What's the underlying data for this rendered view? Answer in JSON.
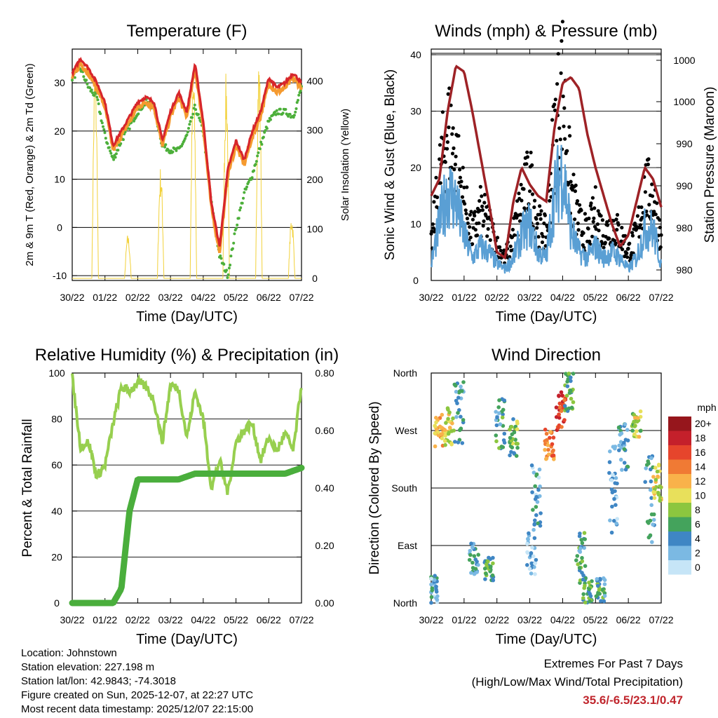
{
  "colors": {
    "temp_red": "#d7262b",
    "temp_orange": "#f59a2f",
    "dewpoint_green": "#4caf3a",
    "solar_yellow": "#f2d13a",
    "gust_black": "#000000",
    "wind_blue": "#5a9fd4",
    "pressure_maroon": "#9e2226",
    "rh_lightgreen": "#97cf4f",
    "precip_green": "#4aae3c",
    "extremes_red": "#c0262d"
  },
  "x_ticks": [
    "30/22",
    "01/22",
    "02/22",
    "03/22",
    "04/22",
    "05/22",
    "06/22",
    "07/22"
  ],
  "chart_data": [
    {
      "id": "temperature",
      "type": "line",
      "title": "Temperature (F)",
      "xlabel": "Time (Day/UTC)",
      "ylabel": "2m & 9m T (Red, Orange) & 2m Td (Green)",
      "y2label": "Solar Insolation (Yellow)",
      "ylim": [
        -11,
        37
      ],
      "y2lim": [
        0,
        460
      ],
      "yticks": [
        -10,
        0,
        10,
        20,
        30
      ],
      "y2ticks": [
        0,
        100,
        200,
        300,
        400
      ],
      "x": [
        0,
        0.25,
        0.5,
        0.75,
        1.0,
        1.25,
        1.5,
        1.75,
        2.0,
        2.25,
        2.5,
        2.75,
        3.0,
        3.25,
        3.5,
        3.75,
        4.0,
        4.25,
        4.5,
        4.75,
        5.0,
        5.25,
        5.5,
        5.75,
        6.0,
        6.25,
        6.5,
        6.75,
        7.0
      ],
      "series": [
        {
          "name": "2m T",
          "values": [
            32,
            35,
            33,
            30,
            26,
            17,
            20,
            23,
            26,
            27,
            26,
            18,
            24,
            28,
            24,
            34,
            22,
            5,
            -4,
            12,
            18,
            14,
            20,
            24,
            31,
            29,
            30,
            32,
            30
          ]
        },
        {
          "name": "9m T",
          "values": [
            31,
            34,
            32,
            29,
            25,
            16,
            19,
            22,
            25,
            26,
            25,
            17,
            23,
            27,
            23,
            33,
            21,
            4,
            -5,
            11,
            17,
            13,
            19,
            23,
            30,
            28,
            29,
            31,
            29
          ]
        },
        {
          "name": "2m Td",
          "values": [
            31,
            33,
            29,
            27,
            19,
            14,
            18,
            21,
            24,
            26,
            25,
            17,
            16,
            16,
            19,
            25,
            20,
            5,
            -6,
            -10,
            0,
            7,
            11,
            17,
            22,
            24,
            24,
            23,
            29
          ]
        },
        {
          "name": "Solar Insolation",
          "axis": "y2",
          "peaks": [
            {
              "x": 0.7,
              "v": 440
            },
            {
              "x": 1.7,
              "v": 90
            },
            {
              "x": 2.7,
              "v": 230
            },
            {
              "x": 3.7,
              "v": 430
            },
            {
              "x": 4.7,
              "v": 420
            },
            {
              "x": 5.7,
              "v": 460
            },
            {
              "x": 6.7,
              "v": 130
            }
          ]
        }
      ]
    },
    {
      "id": "winds",
      "type": "scatter",
      "title": "Winds (mph) & Pressure (mb)",
      "xlabel": "Time (Day/UTC)",
      "ylabel": "Sonic Wind & Gust (Blue, Black)",
      "y2label": "Station Pressure (Maroon)",
      "ylim": [
        0,
        41
      ],
      "yticks": [
        0,
        10,
        20,
        30,
        40
      ],
      "y2tick_labels": [
        "980",
        "980",
        "990",
        "990",
        "1000",
        "1000"
      ],
      "x": [
        0,
        0.25,
        0.5,
        0.75,
        1.0,
        1.25,
        1.5,
        1.75,
        2.0,
        2.25,
        2.5,
        2.75,
        3.0,
        3.25,
        3.5,
        3.75,
        4.0,
        4.25,
        4.5,
        4.75,
        5.0,
        5.25,
        5.5,
        5.75,
        6.0,
        6.25,
        6.5,
        6.75,
        7.0
      ],
      "series": [
        {
          "name": "Gust",
          "values": [
            6,
            18,
            27,
            22,
            14,
            8,
            12,
            10,
            6,
            4,
            8,
            14,
            18,
            10,
            8,
            26,
            35,
            16,
            10,
            8,
            12,
            8,
            10,
            8,
            5,
            8,
            16,
            15,
            7
          ]
        },
        {
          "name": "Wind",
          "values": [
            3,
            10,
            16,
            14,
            8,
            4,
            6,
            5,
            3,
            2,
            4,
            8,
            10,
            5,
            4,
            15,
            20,
            9,
            5,
            4,
            6,
            4,
            5,
            4,
            2,
            4,
            9,
            9,
            3
          ]
        },
        {
          "name": "Pressure",
          "axis": "y2",
          "values": [
            15,
            18,
            30,
            38,
            37,
            30,
            22,
            14,
            5,
            4,
            14,
            20,
            17,
            15,
            14,
            27,
            35,
            36,
            34,
            26,
            20,
            15,
            10,
            6,
            8,
            14,
            20,
            18,
            13
          ]
        }
      ]
    },
    {
      "id": "humidity",
      "type": "line",
      "title": "Relative Humidity (%) & Precipitation (in)",
      "xlabel": "Time (Day/UTC)",
      "ylabel": "Percent & Total Rainfall",
      "ylim": [
        0,
        100
      ],
      "y2lim": [
        0,
        0.8
      ],
      "yticks": [
        0,
        20,
        40,
        60,
        80,
        100
      ],
      "y2tick_labels": [
        "0.00",
        "0.20",
        "0.40",
        "0.60",
        "0.80"
      ],
      "x": [
        0,
        0.25,
        0.5,
        0.75,
        1.0,
        1.25,
        1.5,
        1.75,
        2.0,
        2.25,
        2.5,
        2.75,
        3.0,
        3.25,
        3.5,
        3.75,
        4.0,
        4.25,
        4.5,
        4.75,
        5.0,
        5.25,
        5.5,
        5.75,
        6.0,
        6.25,
        6.5,
        6.75,
        7.0
      ],
      "series": [
        {
          "name": "RH",
          "values": [
            98,
            68,
            70,
            55,
            60,
            78,
            94,
            92,
            96,
            94,
            88,
            70,
            95,
            93,
            72,
            92,
            80,
            50,
            62,
            48,
            70,
            75,
            78,
            62,
            72,
            66,
            74,
            66,
            95
          ]
        },
        {
          "name": "Precip",
          "axis": "y2",
          "values": [
            0,
            0,
            0,
            0,
            0,
            0,
            0.05,
            0.32,
            0.43,
            0.43,
            0.43,
            0.43,
            0.43,
            0.43,
            0.44,
            0.45,
            0.45,
            0.45,
            0.45,
            0.45,
            0.45,
            0.45,
            0.45,
            0.45,
            0.45,
            0.45,
            0.45,
            0.46,
            0.47
          ]
        }
      ]
    },
    {
      "id": "direction",
      "type": "scatter",
      "title": "Wind Direction",
      "xlabel": "Time (Day/UTC)",
      "ylabel": "Direction (Colored By Speed)",
      "ylim": [
        0,
        360
      ],
      "ytick_labels": [
        "North",
        "East",
        "South",
        "West",
        "North"
      ],
      "legend_title": "mph",
      "legend_labels": [
        "0",
        "2",
        "4",
        "6",
        "8",
        "10",
        "12",
        "14",
        "16",
        "18",
        "20+"
      ],
      "legend_colors": [
        "#c6e5f7",
        "#7bb9e3",
        "#3f86c4",
        "#44a35c",
        "#8cc63f",
        "#e8e05b",
        "#f9b24a",
        "#f07a34",
        "#e6452c",
        "#c4202b",
        "#96161c"
      ],
      "clusters": [
        {
          "x": 0.05,
          "dir": 20,
          "spread": 25,
          "speed": 3
        },
        {
          "x": 0.25,
          "dir": 270,
          "spread": 25,
          "speed": 12
        },
        {
          "x": 0.55,
          "dir": 275,
          "spread": 30,
          "speed": 10
        },
        {
          "x": 0.85,
          "dir": 300,
          "spread": 50,
          "speed": 4
        },
        {
          "x": 1.3,
          "dir": 70,
          "spread": 25,
          "speed": 4
        },
        {
          "x": 1.75,
          "dir": 55,
          "spread": 20,
          "speed": 6
        },
        {
          "x": 2.1,
          "dir": 280,
          "spread": 40,
          "speed": 5
        },
        {
          "x": 2.5,
          "dir": 260,
          "spread": 30,
          "speed": 7
        },
        {
          "x": 3.05,
          "dir": 80,
          "spread": 40,
          "speed": 2
        },
        {
          "x": 3.2,
          "dir": 170,
          "spread": 50,
          "speed": 3
        },
        {
          "x": 3.6,
          "dir": 250,
          "spread": 25,
          "speed": 14
        },
        {
          "x": 3.95,
          "dir": 300,
          "spread": 30,
          "speed": 16
        },
        {
          "x": 4.2,
          "dir": 330,
          "spread": 30,
          "speed": 6
        },
        {
          "x": 4.55,
          "dir": 70,
          "spread": 40,
          "speed": 5
        },
        {
          "x": 4.75,
          "dir": 20,
          "spread": 20,
          "speed": 6
        },
        {
          "x": 5.15,
          "dir": 20,
          "spread": 20,
          "speed": 5
        },
        {
          "x": 5.55,
          "dir": 180,
          "spread": 70,
          "speed": 3
        },
        {
          "x": 5.85,
          "dir": 240,
          "spread": 40,
          "speed": 4
        },
        {
          "x": 6.25,
          "dir": 280,
          "spread": 20,
          "speed": 9
        },
        {
          "x": 6.65,
          "dir": 160,
          "spread": 70,
          "speed": 4
        },
        {
          "x": 6.9,
          "dir": 190,
          "spread": 30,
          "speed": 10
        }
      ]
    }
  ],
  "station": {
    "location": "Location: Johnstown",
    "elevation": "Station elevation: 227.198 m",
    "latlon": "Station lat/lon: 42.9843; -74.3018",
    "created": "Figure created on Sun, 2025-12-07, at 22:27 UTC",
    "recent": "Most recent data timestamp: 2025/12/07 22:15:00"
  },
  "extremes": {
    "heading": "Extremes For Past 7 Days",
    "subheading": "(High/Low/Max Wind/Total Precipitation)",
    "values": "35.6/-6.5/23.1/0.47"
  }
}
